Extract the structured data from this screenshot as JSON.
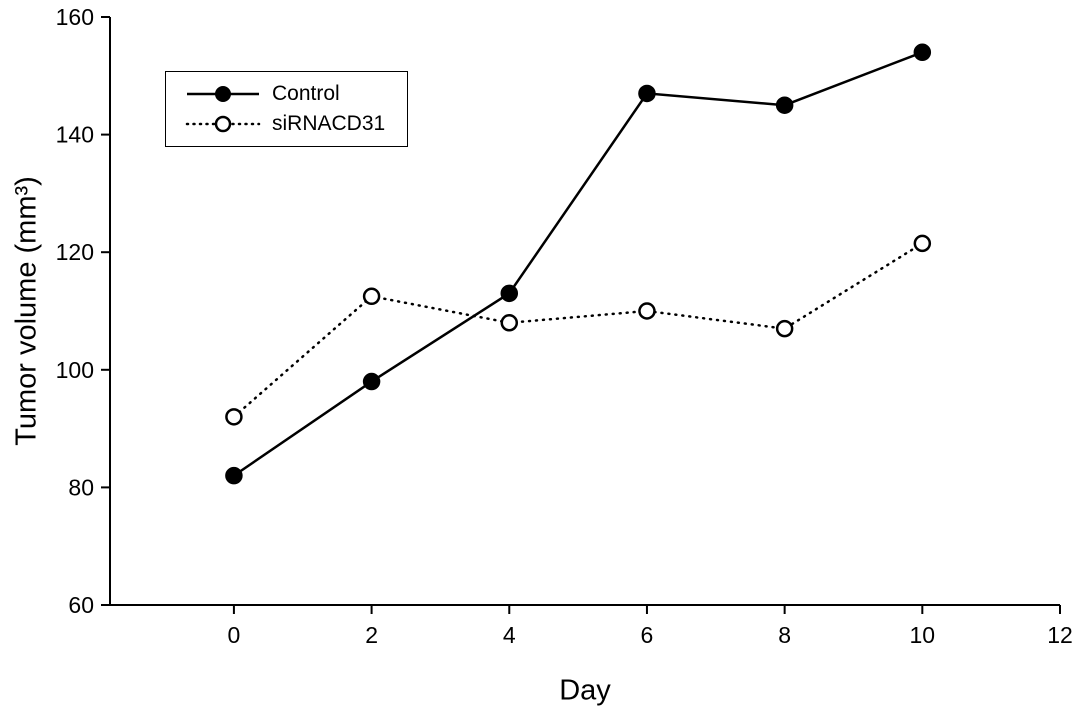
{
  "chart_data": {
    "type": "line",
    "title": "",
    "xlabel": "Day",
    "ylabel": "Tumor volume (mm³)",
    "x": [
      0,
      2,
      4,
      6,
      8,
      10
    ],
    "series": [
      {
        "name": "Control",
        "values": [
          82,
          98,
          113,
          147,
          145,
          154
        ],
        "line": "solid",
        "marker": "filled-circle",
        "color": "#000000"
      },
      {
        "name": "siRNACD31",
        "values": [
          92,
          112.5,
          108,
          110,
          107,
          121.5
        ],
        "line": "dotted",
        "marker": "open-circle",
        "color": "#000000"
      }
    ],
    "xlim": [
      -1.8,
      12
    ],
    "ylim": [
      60,
      160
    ],
    "xticks": [
      0,
      2,
      4,
      6,
      8,
      10,
      12
    ],
    "yticks": [
      60,
      80,
      100,
      120,
      140,
      160
    ],
    "grid": false,
    "legend_position": "upper-left",
    "colors": {
      "axis": "#000000",
      "background": "#ffffff"
    }
  }
}
